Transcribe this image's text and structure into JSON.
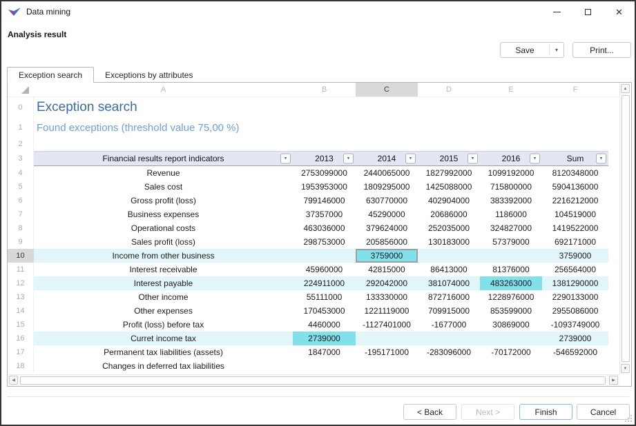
{
  "window": {
    "title": "Data mining"
  },
  "icons": {
    "close_glyph": "✕",
    "save_dropdown_glyph": "▾",
    "filter_glyph": "▾",
    "scroll_up_glyph": "▲",
    "scroll_down_glyph": "▼",
    "scroll_left_glyph": "◀",
    "scroll_right_glyph": "▶"
  },
  "header": {
    "title": "Analysis result",
    "save_label": "Save",
    "print_label": "Print..."
  },
  "tabs": [
    {
      "label": "Exception search",
      "active": true
    },
    {
      "label": "Exceptions by attributes",
      "active": false
    }
  ],
  "grid": {
    "column_letters": [
      "A",
      "B",
      "C",
      "D",
      "E",
      "F"
    ],
    "selected_column_letter": "C",
    "title_row": {
      "number": "0",
      "text": "Exception search"
    },
    "subtitle_row": {
      "number": "1",
      "text": "Found exceptions (threshold value 75,00 %)"
    },
    "spacer_row": {
      "number": "2"
    },
    "header_row": {
      "number": "3",
      "cells": [
        "Financial results report indicators",
        "2013",
        "2014",
        "2015",
        "2016",
        "Sum"
      ]
    },
    "rows": [
      {
        "number": "4",
        "label": "Revenue",
        "values": [
          "2753099000",
          "2440065000",
          "1827992000",
          "1099192000",
          "8120348000"
        ]
      },
      {
        "number": "5",
        "label": "Sales cost",
        "values": [
          "1953953000",
          "1809295000",
          "1425088000",
          "715800000",
          "5904136000"
        ]
      },
      {
        "number": "6",
        "label": "Gross profit (loss)",
        "values": [
          "799146000",
          "630770000",
          "402904000",
          "383392000",
          "2216212000"
        ]
      },
      {
        "number": "7",
        "label": "Business expenses",
        "values": [
          "37357000",
          "45290000",
          "20686000",
          "1186000",
          "104519000"
        ]
      },
      {
        "number": "8",
        "label": "Operational costs",
        "values": [
          "463036000",
          "379624000",
          "252035000",
          "324827000",
          "1419522000"
        ]
      },
      {
        "number": "9",
        "label": "Sales profit (loss)",
        "values": [
          "298753000",
          "205856000",
          "130183000",
          "57379000",
          "692171000"
        ]
      },
      {
        "number": "10",
        "label": "Income from other business",
        "values": [
          "",
          "3759000",
          "",
          "",
          "3759000"
        ],
        "highlight": true,
        "bright_cells": [
          1
        ],
        "selected_cell": 1,
        "selected": true
      },
      {
        "number": "11",
        "label": "Interest receivable",
        "values": [
          "45960000",
          "42815000",
          "86413000",
          "81376000",
          "256564000"
        ]
      },
      {
        "number": "12",
        "label": "Interest payable",
        "values": [
          "224911000",
          "292042000",
          "381074000",
          "483263000",
          "1381290000"
        ],
        "highlight": true,
        "bright_cells": [
          3
        ]
      },
      {
        "number": "13",
        "label": "Other income",
        "values": [
          "55111000",
          "133330000",
          "872716000",
          "1228976000",
          "2290133000"
        ]
      },
      {
        "number": "14",
        "label": "Other expenses",
        "values": [
          "170453000",
          "1221119000",
          "709915000",
          "853599000",
          "2955086000"
        ]
      },
      {
        "number": "15",
        "label": "Profit (loss) before tax",
        "values": [
          "4460000",
          "-1127401000",
          "-1677000",
          "30869000",
          "-1093749000"
        ]
      },
      {
        "number": "16",
        "label": "Curret income tax",
        "values": [
          "2739000",
          "",
          "",
          "",
          "2739000"
        ],
        "highlight": true,
        "bright_cells": [
          0
        ]
      },
      {
        "number": "17",
        "label": "Permanent tax liabilities (assets)",
        "values": [
          "1847000",
          "-195171000",
          "-283096000",
          "-70172000",
          "-546592000"
        ]
      },
      {
        "number": "18",
        "label": "Changes in deferred tax liabilities",
        "values": [
          "",
          "",
          "",
          "",
          ""
        ]
      }
    ]
  },
  "footer": {
    "back_label": "< Back",
    "next_label": "Next >",
    "finish_label": "Finish",
    "cancel_label": "Cancel",
    "next_disabled": true
  },
  "colors": {
    "title_blue": "#3a6ba6",
    "subtitle_blue": "#6f9fd6",
    "header_band": "#e3e7f3",
    "exception_row": "#e2f6f9",
    "exception_cell": "#81e0ea",
    "selection_gray": "#d8d8d8",
    "finish_border": "#8fb6e2"
  }
}
